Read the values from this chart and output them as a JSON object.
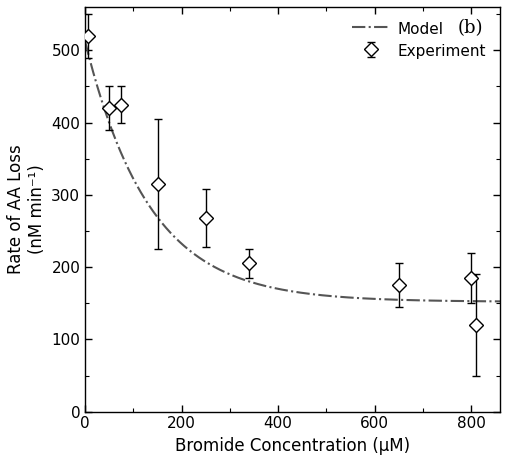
{
  "title": "(b)",
  "xlabel": "Bromide Concentration (μM)",
  "ylabel": "Rate of AA Loss\n(nM min⁻¹)",
  "xlim": [
    0,
    860
  ],
  "ylim": [
    0,
    560
  ],
  "xticks": [
    0,
    200,
    400,
    600,
    800
  ],
  "yticks": [
    0,
    100,
    200,
    300,
    400,
    500
  ],
  "exp_x": [
    5,
    50,
    75,
    150,
    250,
    340,
    650,
    800,
    810
  ],
  "exp_y": [
    520,
    420,
    425,
    315,
    268,
    205,
    175,
    185,
    120
  ],
  "exp_yerr": [
    30,
    30,
    25,
    90,
    40,
    20,
    30,
    35,
    70
  ],
  "model_x_end": 860,
  "model_A": 360,
  "model_k": 0.0075,
  "model_C": 152,
  "background_color": "#ffffff",
  "line_color": "#555555",
  "marker_color": "#000000",
  "marker_face": "white",
  "legend_loc": "upper right"
}
